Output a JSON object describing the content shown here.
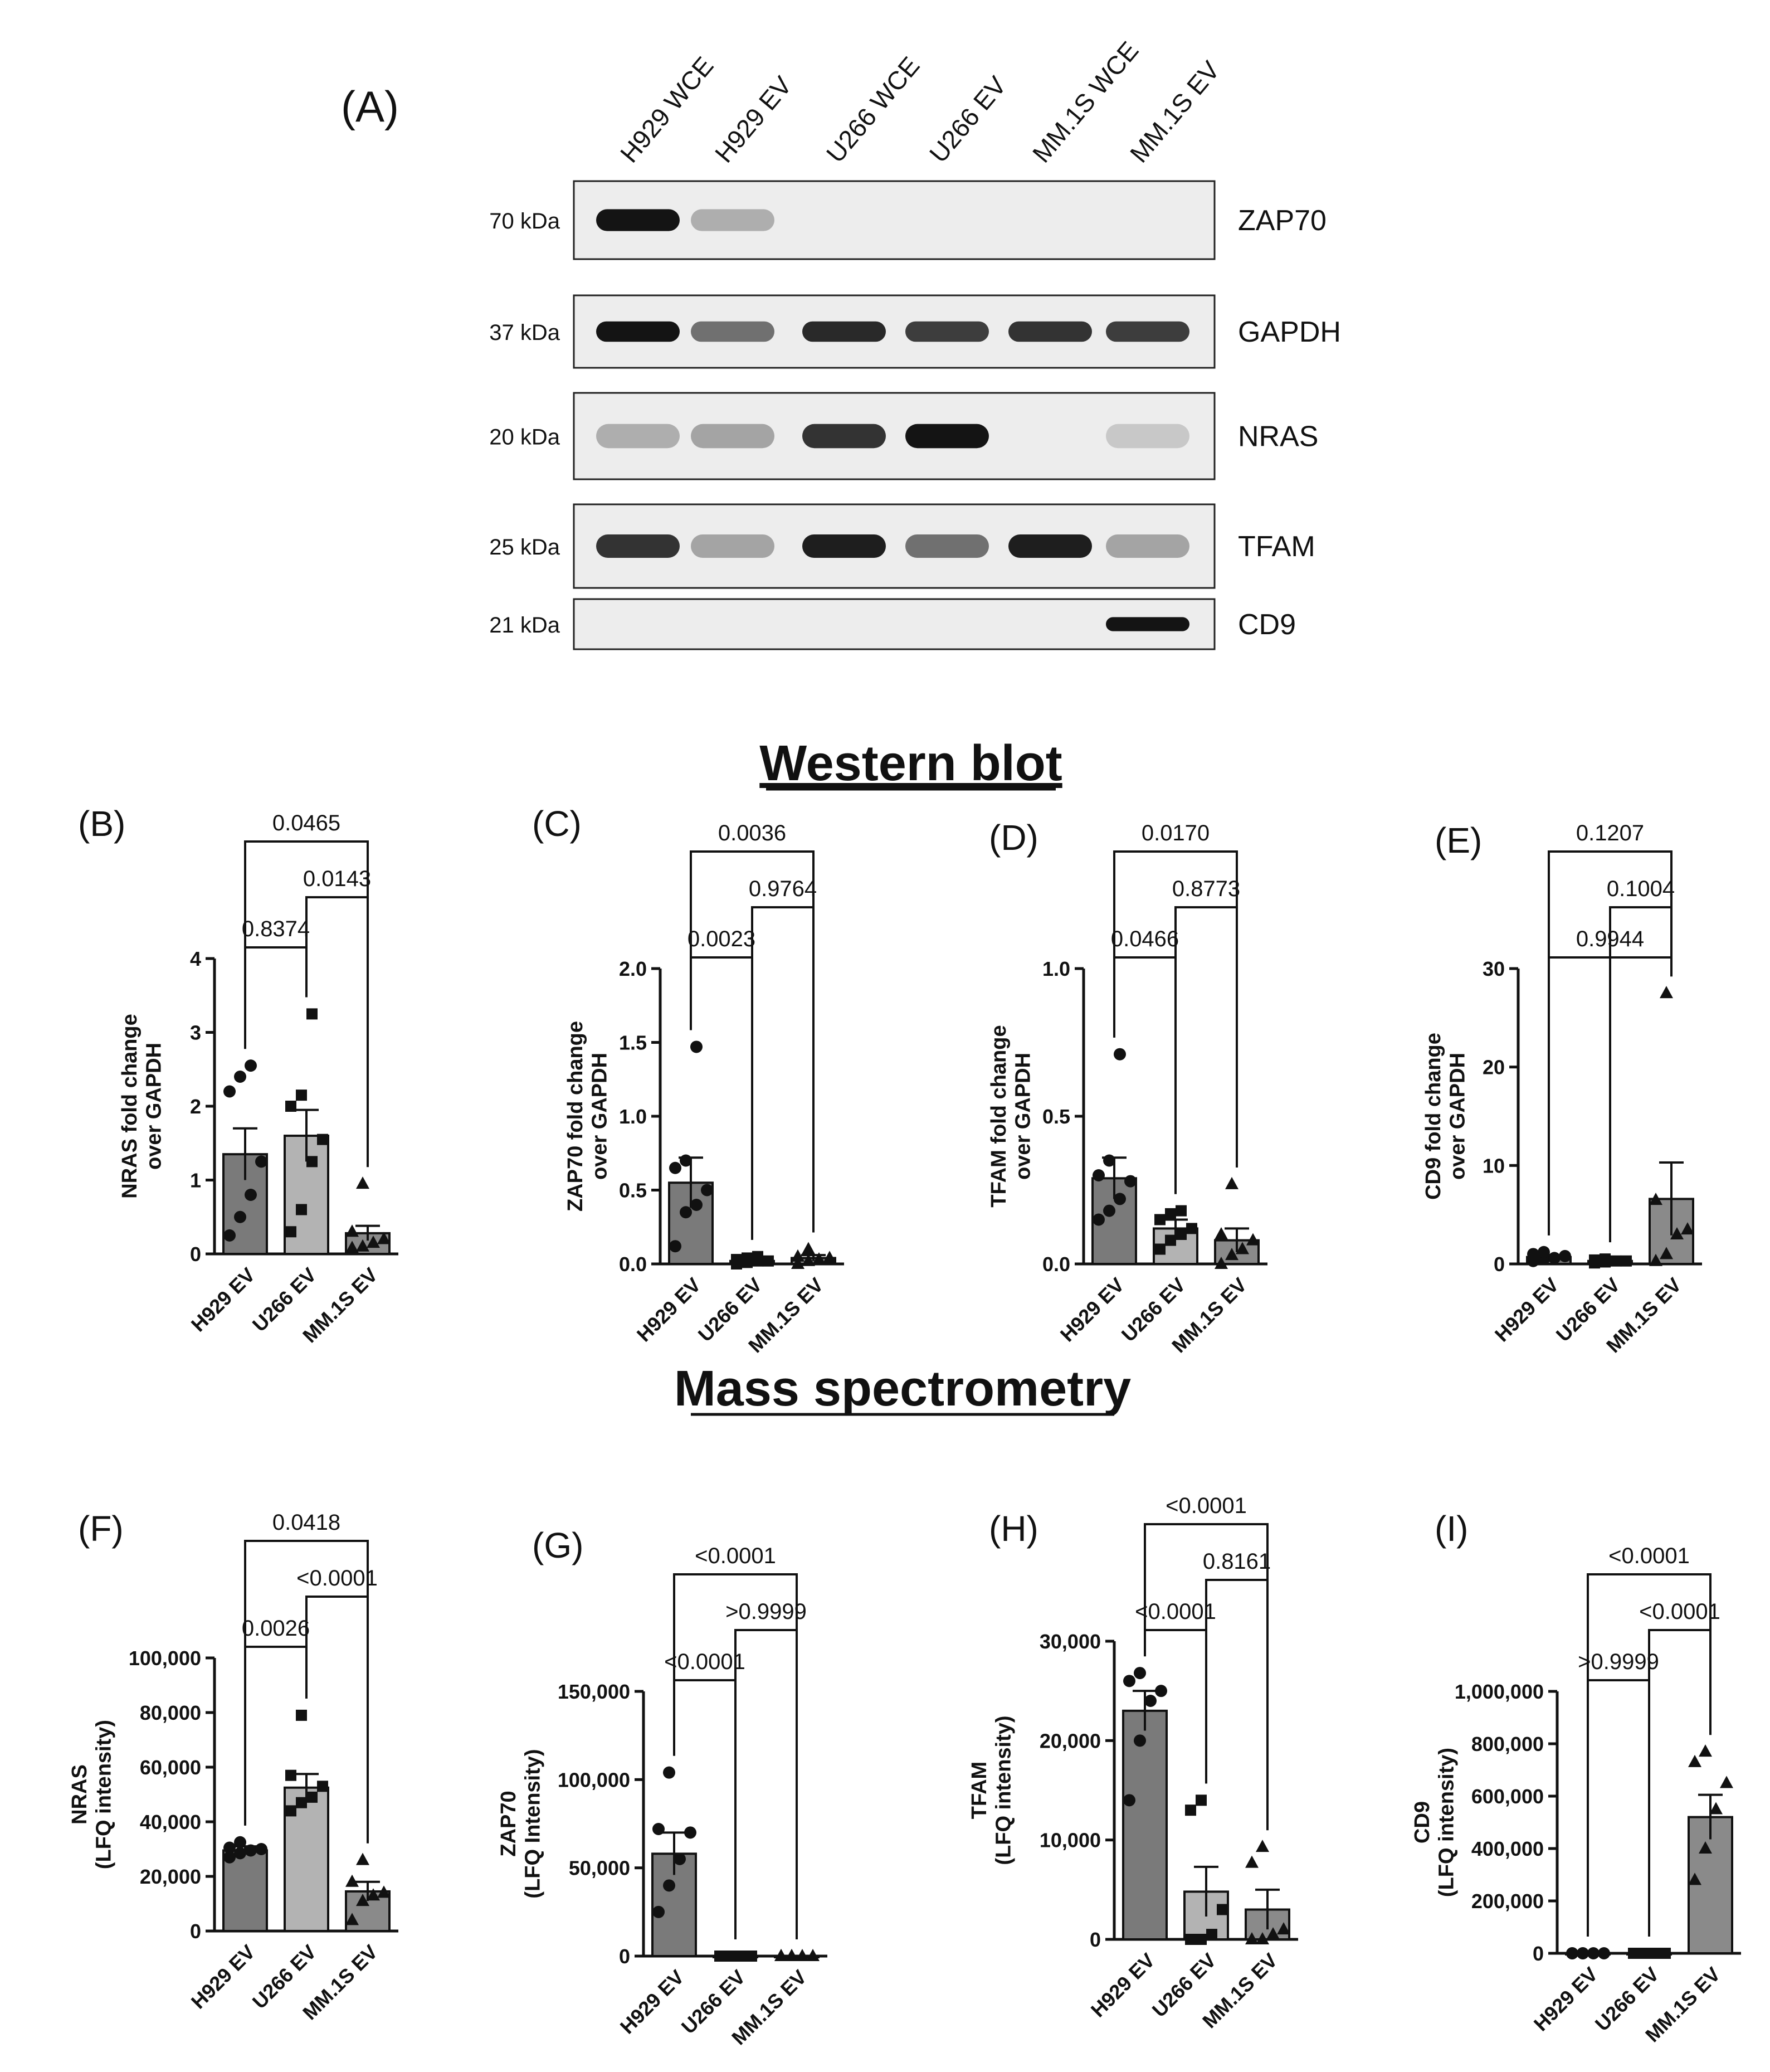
{
  "panel_a": {
    "label": "(A)",
    "lanes": [
      "H929 WCE",
      "H929 EV",
      "U266 WCE",
      "U266 EV",
      "MM.1S WCE",
      "MM.1S EV"
    ],
    "blots": [
      {
        "kda": "70 kDa",
        "protein": "ZAP70",
        "bands": [
          1.0,
          0.25,
          0.0,
          0.0,
          0.0,
          0.0
        ]
      },
      {
        "kda": "37 kDa",
        "protein": "GAPDH",
        "bands": [
          1.0,
          0.55,
          0.9,
          0.8,
          0.85,
          0.8
        ]
      },
      {
        "kda": "20 kDa",
        "protein": "NRAS",
        "bands": [
          0.25,
          0.3,
          0.85,
          1.0,
          0.0,
          0.12
        ]
      },
      {
        "kda": "25 kDa",
        "protein": "TFAM",
        "bands": [
          0.85,
          0.3,
          0.95,
          0.55,
          0.95,
          0.3
        ]
      },
      {
        "kda": "21 kDa",
        "protein": "CD9",
        "bands": [
          0.0,
          0.0,
          0.0,
          0.0,
          0.0,
          1.0
        ]
      }
    ]
  },
  "section_titles": {
    "western": "Western blot",
    "mass": "Mass spectrometry"
  },
  "colors": {
    "h929_bar": "#7a7a7a",
    "u266_bar": "#b3b3b3",
    "mm1s_bar": "#8a8a8a"
  },
  "chart_data": [
    {
      "type": "bar",
      "panel": "(B)",
      "categories": [
        "H929 EV",
        "U266 EV",
        "MM.1S EV"
      ],
      "values": [
        1.35,
        1.6,
        0.28
      ],
      "errors": [
        0.35,
        0.35,
        0.1
      ],
      "ylabel": "NRAS fold change\nover GAPDH",
      "ylim": [
        0,
        4
      ],
      "yticks": [
        "0",
        "1",
        "2",
        "3",
        "4"
      ],
      "points": [
        [
          0.25,
          0.5,
          0.8,
          1.25,
          2.2,
          2.4,
          2.55
        ],
        [
          0.3,
          0.6,
          1.25,
          1.55,
          2.0,
          2.15,
          3.25
        ],
        [
          0.08,
          0.1,
          0.15,
          0.2,
          0.3,
          0.95
        ]
      ],
      "comparisons": [
        {
          "label": "0.8374",
          "from": 0,
          "to": 1
        },
        {
          "label": "0.0143",
          "from": 1,
          "to": 2
        },
        {
          "label": "0.0465",
          "from": 0,
          "to": 2
        }
      ]
    },
    {
      "type": "bar",
      "panel": "(C)",
      "categories": [
        "H929 EV",
        "U266 EV",
        "MM.1S EV"
      ],
      "values": [
        0.55,
        0.02,
        0.04
      ],
      "errors": [
        0.17,
        0.01,
        0.02
      ],
      "ylabel": "ZAP70 fold change\nover GAPDH",
      "ylim": [
        0,
        2.0
      ],
      "yticks": [
        "0.0",
        "0.5",
        "1.0",
        "1.5",
        "2.0"
      ],
      "points": [
        [
          0.12,
          0.35,
          0.4,
          0.5,
          0.65,
          0.7,
          1.47
        ],
        [
          0.0,
          0.01,
          0.02,
          0.02,
          0.03,
          0.04,
          0.05
        ],
        [
          0.0,
          0.02,
          0.03,
          0.04,
          0.05,
          0.1
        ]
      ],
      "comparisons": [
        {
          "label": "0.0023",
          "from": 0,
          "to": 1
        },
        {
          "label": "0.9764",
          "from": 1,
          "to": 2
        },
        {
          "label": "0.0036",
          "from": 0,
          "to": 2
        }
      ]
    },
    {
      "type": "bar",
      "panel": "(D)",
      "categories": [
        "H929 EV",
        "U266 EV",
        "MM.1S EV"
      ],
      "values": [
        0.29,
        0.12,
        0.08
      ],
      "errors": [
        0.07,
        0.03,
        0.04
      ],
      "ylabel": "TFAM fold change\nover GAPDH",
      "ylim": [
        0,
        1.0
      ],
      "yticks": [
        "0.0",
        "0.5",
        "1.0"
      ],
      "points": [
        [
          0.15,
          0.18,
          0.22,
          0.28,
          0.3,
          0.35,
          0.71
        ],
        [
          0.05,
          0.08,
          0.1,
          0.12,
          0.15,
          0.17,
          0.18
        ],
        [
          0.0,
          0.03,
          0.05,
          0.08,
          0.1,
          0.27
        ]
      ],
      "comparisons": [
        {
          "label": "0.0466",
          "from": 0,
          "to": 1
        },
        {
          "label": "0.8773",
          "from": 1,
          "to": 2
        },
        {
          "label": "0.0170",
          "from": 0,
          "to": 2
        }
      ]
    },
    {
      "type": "bar",
      "panel": "(E)",
      "categories": [
        "H929 EV",
        "U266 EV",
        "MM.1S EV"
      ],
      "values": [
        0.7,
        0.3,
        6.6
      ],
      "errors": [
        0.2,
        0.1,
        3.7
      ],
      "ylabel": "CD9 fold change\nover GAPDH",
      "ylim": [
        0,
        30
      ],
      "yticks": [
        "0",
        "10",
        "20",
        "30"
      ],
      "points": [
        [
          0.3,
          0.5,
          0.6,
          0.8,
          1.0,
          1.2
        ],
        [
          0.1,
          0.2,
          0.3,
          0.3,
          0.4,
          0.5
        ],
        [
          0.3,
          1.0,
          3.0,
          3.5,
          6.5,
          27.5
        ]
      ],
      "comparisons": [
        {
          "label": "0.9944",
          "from": 0,
          "to": 2
        },
        {
          "label": "0.1004",
          "from": 1,
          "to": 2
        },
        {
          "label": "0.1207",
          "from": 0,
          "to": 2
        }
      ]
    },
    {
      "type": "bar",
      "panel": "(F)",
      "categories": [
        "H929 EV",
        "U266 EV",
        "MM.1S EV"
      ],
      "values": [
        29500,
        52500,
        14500
      ],
      "errors": [
        1500,
        5000,
        3500
      ],
      "ylabel": "NRAS\n(LFQ intensity)",
      "ylim": [
        0,
        100000
      ],
      "yticks": [
        "0",
        "20,000",
        "40,000",
        "60,000",
        "80,000",
        "100,000"
      ],
      "points": [
        [
          27000,
          28500,
          29500,
          30000,
          30500,
          32500
        ],
        [
          44000,
          47000,
          49000,
          53000,
          57000,
          79000
        ],
        [
          4000,
          11000,
          13000,
          14000,
          18000,
          26000
        ]
      ],
      "comparisons": [
        {
          "label": "0.0026",
          "from": 0,
          "to": 1
        },
        {
          "label": "<0.0001",
          "from": 1,
          "to": 2
        },
        {
          "label": "0.0418",
          "from": 0,
          "to": 2
        }
      ]
    },
    {
      "type": "bar",
      "panel": "(G)",
      "categories": [
        "H929 EV",
        "U266 EV",
        "MM.1S EV"
      ],
      "values": [
        58000,
        0,
        0
      ],
      "errors": [
        12000,
        0,
        0
      ],
      "ylabel": "ZAP70\n(LFQ Intensity)",
      "ylim": [
        0,
        150000
      ],
      "yticks": [
        "0",
        "50,000",
        "100,000",
        "150,000"
      ],
      "points": [
        [
          25000,
          40000,
          55000,
          70000,
          72000,
          104000
        ],
        [
          0,
          0,
          0,
          0,
          0,
          0
        ],
        [
          0,
          0,
          0,
          0,
          0,
          0
        ]
      ],
      "comparisons": [
        {
          "label": "<0.0001",
          "from": 0,
          "to": 1
        },
        {
          "label": ">0.9999",
          "from": 1,
          "to": 2
        },
        {
          "label": "<0.0001",
          "from": 0,
          "to": 2
        }
      ]
    },
    {
      "type": "bar",
      "panel": "(H)",
      "categories": [
        "H929 EV",
        "U266 EV",
        "MM.1S EV"
      ],
      "values": [
        23000,
        4800,
        3000
      ],
      "errors": [
        2000,
        2500,
        2000
      ],
      "ylabel": "TFAM\n(LFQ intensity)",
      "ylim": [
        0,
        30000
      ],
      "yticks": [
        "0",
        "10,000",
        "20,000",
        "30,000"
      ],
      "points": [
        [
          14000,
          20000,
          24000,
          25000,
          26000,
          26800
        ],
        [
          0,
          0,
          500,
          3000,
          13000,
          14000
        ],
        [
          0,
          0,
          500,
          1000,
          7700,
          9300
        ]
      ],
      "comparisons": [
        {
          "label": "<0.0001",
          "from": 0,
          "to": 1
        },
        {
          "label": "0.8161",
          "from": 1,
          "to": 2
        },
        {
          "label": "<0.0001",
          "from": 0,
          "to": 2
        }
      ]
    },
    {
      "type": "bar",
      "panel": "(I)",
      "categories": [
        "H929 EV",
        "U266 EV",
        "MM.1S EV"
      ],
      "values": [
        0,
        0,
        520000
      ],
      "errors": [
        0,
        0,
        85000
      ],
      "ylabel": "CD9\n(LFQ intensity)",
      "ylim": [
        0,
        1000000
      ],
      "yticks": [
        "0",
        "200,000",
        "400,000",
        "600,000",
        "800,000",
        "1,000,000"
      ],
      "points": [
        [
          0,
          0,
          0,
          0,
          0,
          0
        ],
        [
          0,
          0,
          0,
          0,
          0,
          0
        ],
        [
          280000,
          400000,
          550000,
          650000,
          730000,
          770000
        ]
      ],
      "comparisons": [
        {
          "label": ">0.9999",
          "from": 0,
          "to": 1
        },
        {
          "label": "<0.0001",
          "from": 1,
          "to": 2
        },
        {
          "label": "<0.0001",
          "from": 0,
          "to": 2
        }
      ]
    }
  ]
}
